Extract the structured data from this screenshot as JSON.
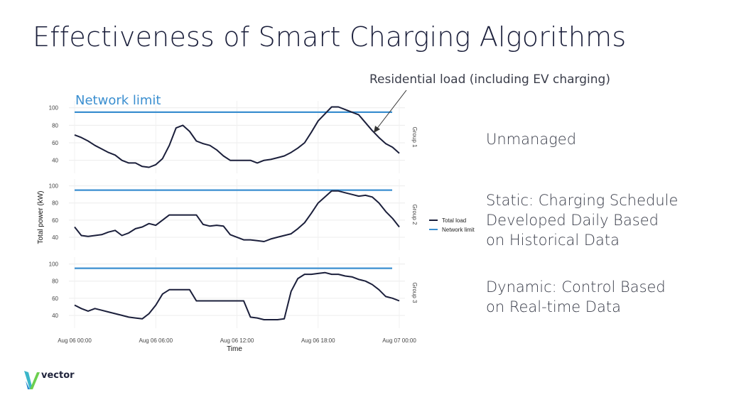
{
  "slide": {
    "title": "Effectiveness of Smart Charging Algorithms",
    "labels": [
      [
        "Unmanaged"
      ],
      [
        "Static: Charging Schedule",
        "Developed Daily Based",
        "on Historical Data"
      ],
      [
        "Dynamic: Control Based",
        "on Real-time Data"
      ]
    ],
    "logo_text": "vector"
  },
  "chart_data": {
    "type": "line",
    "xlabel": "Time",
    "ylabel": "Total power (kW)",
    "x_ticks": [
      "Aug 06 00:00",
      "Aug 06 06:00",
      "Aug 06 12:00",
      "Aug 06 18:00",
      "Aug 07 00:00"
    ],
    "y_ticks": [
      40,
      60,
      80,
      100
    ],
    "ylim": [
      30,
      103
    ],
    "annotations": {
      "network_limit": "Network limit",
      "residential": "Residential load (including EV charging)"
    },
    "legend": {
      "placement": "right",
      "total": "Total load",
      "limit": "Network limit"
    },
    "colors": {
      "total": "#1b1f3b",
      "limit": "#3b8fd0"
    },
    "network_limit_kW": 95,
    "x_unit": "hours since Aug 06 00:00",
    "facets": [
      {
        "name": "Group 1",
        "x": [
          0,
          0.5,
          1,
          1.5,
          2,
          2.5,
          3,
          3.5,
          4,
          4.5,
          5,
          5.5,
          6,
          6.5,
          7,
          7.5,
          8,
          8.5,
          9,
          9.5,
          10,
          10.5,
          11,
          11.5,
          12,
          12.5,
          13,
          13.5,
          14,
          14.5,
          15,
          15.5,
          16,
          16.5,
          17,
          17.5,
          18,
          18.5,
          19,
          19.5,
          20,
          20.5,
          21,
          21.5,
          22,
          22.5,
          23,
          23.5,
          24
        ],
        "values": [
          69,
          66,
          62,
          57,
          53,
          49,
          46,
          40,
          37,
          37,
          33,
          32,
          35,
          42,
          57,
          77,
          80,
          73,
          62,
          59,
          57,
          52,
          45,
          40,
          40,
          40,
          40,
          37,
          40,
          41,
          43,
          45,
          49,
          54,
          60,
          72,
          85,
          93,
          101,
          101,
          98,
          95,
          92,
          83,
          74,
          66,
          59,
          55,
          48
        ]
      },
      {
        "name": "Group 2",
        "x": [
          0,
          0.5,
          1,
          1.5,
          2,
          2.5,
          3,
          3.5,
          4,
          4.5,
          5,
          5.5,
          6,
          6.5,
          7,
          7.5,
          8,
          8.5,
          9,
          9.5,
          10,
          10.5,
          11,
          11.5,
          12,
          12.5,
          13,
          13.5,
          14,
          14.5,
          15,
          15.5,
          16,
          16.5,
          17,
          17.5,
          18,
          18.5,
          19,
          19.5,
          20,
          20.5,
          21,
          21.5,
          22,
          22.5,
          23,
          23.5,
          24
        ],
        "values": [
          52,
          42,
          41,
          42,
          43,
          46,
          48,
          42,
          45,
          50,
          52,
          56,
          54,
          60,
          66,
          66,
          66,
          66,
          66,
          55,
          53,
          54,
          53,
          43,
          40,
          37,
          37,
          36,
          35,
          38,
          40,
          42,
          44,
          50,
          57,
          68,
          80,
          87,
          94,
          94,
          92,
          90,
          88,
          89,
          87,
          80,
          70,
          62,
          52
        ]
      },
      {
        "name": "Group 3",
        "x": [
          0,
          0.5,
          1,
          1.5,
          2,
          2.5,
          3,
          3.5,
          4,
          4.5,
          5,
          5.5,
          6,
          6.5,
          7,
          7.5,
          8,
          8.5,
          9,
          9.5,
          10,
          10.5,
          11,
          11.5,
          12,
          12.5,
          13,
          13.5,
          14,
          14.5,
          15,
          15.5,
          16,
          16.5,
          17,
          17.5,
          18,
          18.5,
          19,
          19.5,
          20,
          20.5,
          21,
          21.5,
          22,
          22.5,
          23,
          23.5,
          24
        ],
        "values": [
          52,
          48,
          45,
          48,
          46,
          44,
          42,
          40,
          38,
          37,
          36,
          42,
          52,
          65,
          70,
          70,
          70,
          70,
          57,
          57,
          57,
          57,
          57,
          57,
          57,
          57,
          38,
          37,
          35,
          35,
          35,
          36,
          68,
          83,
          88,
          88,
          89,
          90,
          88,
          88,
          86,
          85,
          82,
          80,
          76,
          70,
          62,
          60,
          57
        ]
      }
    ]
  }
}
